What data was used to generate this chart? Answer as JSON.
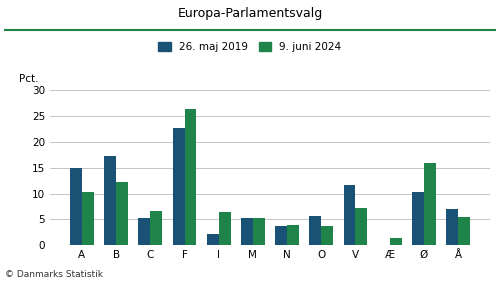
{
  "title": "Europa-Parlamentsvalg",
  "categories": [
    "A",
    "B",
    "C",
    "F",
    "I",
    "M",
    "N",
    "O",
    "V",
    "Æ",
    "Ø",
    "Å"
  ],
  "values_2019": [
    15.0,
    17.2,
    5.2,
    22.7,
    2.2,
    5.2,
    3.7,
    5.6,
    11.7,
    0.0,
    10.4,
    7.0
  ],
  "values_2024": [
    10.4,
    12.2,
    6.6,
    26.3,
    6.4,
    5.3,
    3.9,
    3.7,
    7.2,
    1.5,
    15.9,
    5.5
  ],
  "color_2019": "#1a5276",
  "color_2024": "#1e8449",
  "legend_2019": "26. maj 2019",
  "legend_2024": "9. juni 2024",
  "ylabel": "Pct.",
  "ylim": [
    0,
    30
  ],
  "yticks": [
    0,
    5,
    10,
    15,
    20,
    25,
    30
  ],
  "footer": "© Danmarks Statistik",
  "title_line_color": "#1e8449",
  "background_color": "#ffffff",
  "bar_width": 0.35
}
